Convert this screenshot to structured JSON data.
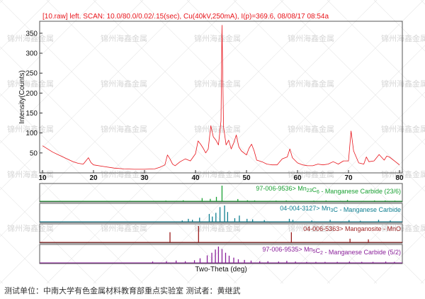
{
  "chart_data": {
    "type": "line",
    "title": "[10.raw] left. SCAN: 10.0/80.0/0.02/.15(sec), Cu(40kV,250mA), I(p)=369.6, 08/08/17 08:54a",
    "xlabel": "Two-Theta (deg)",
    "ylabel": "Intensity(Counts)",
    "xlim": [
      10,
      80
    ],
    "ylim": [
      0,
      380
    ],
    "x_ticks": [
      "10",
      "20",
      "30",
      "40",
      "50",
      "60",
      "70",
      "80"
    ],
    "y_ticks": [
      "50",
      "100",
      "150",
      "200",
      "250",
      "300",
      "350"
    ],
    "grid": false,
    "series": [
      {
        "color": "#e8141b",
        "x": [
          10,
          11,
          12,
          13,
          14,
          15,
          16,
          17,
          18,
          18.5,
          19,
          19.5,
          20,
          22,
          24,
          26,
          28,
          30,
          32,
          33,
          34,
          34.5,
          35,
          35.5,
          36,
          37,
          38,
          39,
          40,
          40.5,
          41,
          41.5,
          42,
          42.5,
          43,
          43.5,
          44,
          44.5,
          45,
          45.2,
          45.5,
          46,
          46.5,
          47,
          47.5,
          48,
          48.5,
          49,
          50,
          50.5,
          51,
          51.5,
          52,
          53,
          54,
          55,
          56,
          57,
          58,
          58.5,
          59,
          60,
          61,
          62,
          63,
          64,
          65,
          66,
          67,
          68,
          69,
          70,
          70.5,
          71,
          72,
          73,
          73.5,
          74,
          75,
          75.5,
          76,
          77,
          77.5,
          78,
          79,
          80
        ],
        "y": [
          68,
          60,
          52,
          46,
          40,
          34,
          28,
          24,
          22,
          30,
          38,
          26,
          20,
          16,
          12,
          10,
          9,
          9,
          10,
          14,
          20,
          45,
          35,
          22,
          18,
          28,
          35,
          30,
          48,
          80,
          72,
          62,
          50,
          60,
          118,
          90,
          82,
          70,
          130,
          370,
          115,
          70,
          82,
          60,
          75,
          95,
          65,
          55,
          45,
          62,
          72,
          55,
          32,
          28,
          22,
          20,
          20,
          35,
          40,
          60,
          38,
          25,
          20,
          18,
          18,
          22,
          20,
          22,
          28,
          22,
          30,
          30,
          105,
          55,
          25,
          22,
          40,
          28,
          30,
          38,
          46,
          32,
          42,
          40,
          30,
          20
        ]
      }
    ],
    "reference_patterns": [
      {
        "label": "97-006-9536> Mn23C6 - Manganese Carbide (23/6)",
        "code": "97-006-9536>",
        "formula_main": "Mn",
        "sub1": "23",
        "formula_c": "C",
        "sub2": "6",
        "name": "- Manganese Carbide (23/6)",
        "color": "#1aa133",
        "peaks": [
          {
            "x": 34.2,
            "h": 0.04
          },
          {
            "x": 37.6,
            "h": 0.06
          },
          {
            "x": 41.3,
            "h": 0.2
          },
          {
            "x": 42.9,
            "h": 0.15
          },
          {
            "x": 44.1,
            "h": 0.28
          },
          {
            "x": 45.2,
            "h": 1.0
          },
          {
            "x": 48.3,
            "h": 0.14
          },
          {
            "x": 50.2,
            "h": 0.06
          },
          {
            "x": 51.6,
            "h": 0.05
          },
          {
            "x": 55.8,
            "h": 0.04
          },
          {
            "x": 57.8,
            "h": 0.05
          },
          {
            "x": 63.2,
            "h": 0.04
          },
          {
            "x": 65.6,
            "h": 0.05
          },
          {
            "x": 69.8,
            "h": 0.08
          },
          {
            "x": 75.1,
            "h": 0.05
          },
          {
            "x": 77.2,
            "h": 0.05
          },
          {
            "x": 79.1,
            "h": 0.04
          }
        ]
      },
      {
        "label": "04-004-3127> Mn3C - Manganese Carbide",
        "code": "04-004-3127>",
        "formula_main": "Mn",
        "sub1": "3",
        "formula_c": "C",
        "sub2": "",
        "name": "- Manganese Carbide",
        "color": "#0f7f91",
        "peaks": [
          {
            "x": 37.4,
            "h": 0.08
          },
          {
            "x": 38.6,
            "h": 0.18
          },
          {
            "x": 39.4,
            "h": 0.12
          },
          {
            "x": 40.8,
            "h": 0.25
          },
          {
            "x": 42.7,
            "h": 0.48
          },
          {
            "x": 43.3,
            "h": 0.32
          },
          {
            "x": 44.0,
            "h": 0.55
          },
          {
            "x": 44.8,
            "h": 0.9
          },
          {
            "x": 45.7,
            "h": 1.0
          },
          {
            "x": 46.3,
            "h": 0.6
          },
          {
            "x": 47.7,
            "h": 0.22
          },
          {
            "x": 48.6,
            "h": 0.38
          },
          {
            "x": 50.1,
            "h": 0.18
          },
          {
            "x": 51.2,
            "h": 0.15
          },
          {
            "x": 53.5,
            "h": 0.1
          },
          {
            "x": 58.4,
            "h": 0.18
          },
          {
            "x": 59.1,
            "h": 0.12
          },
          {
            "x": 62.8,
            "h": 0.08
          },
          {
            "x": 66.4,
            "h": 0.12
          },
          {
            "x": 70.1,
            "h": 0.1
          },
          {
            "x": 72.3,
            "h": 0.06
          },
          {
            "x": 75.9,
            "h": 0.12
          },
          {
            "x": 78.2,
            "h": 0.08
          }
        ]
      },
      {
        "label": "04-006-5363> Manganosite - MnO",
        "code": "04-006-5363>",
        "formula_main": "Manganosite - MnO",
        "sub1": "",
        "formula_c": "",
        "sub2": "",
        "name": "",
        "color": "#9b1d1d",
        "peaks": [
          {
            "x": 35.0,
            "h": 0.62
          },
          {
            "x": 40.6,
            "h": 1.0
          },
          {
            "x": 58.8,
            "h": 0.62
          },
          {
            "x": 70.3,
            "h": 0.22
          },
          {
            "x": 73.9,
            "h": 0.18
          }
        ]
      },
      {
        "label": "97-006-9535> Mn5C2 - Manganese Carbide (5/2)",
        "code": "97-006-9535>",
        "formula_main": "Mn",
        "sub1": "5",
        "formula_c": "C",
        "sub2": "2",
        "name": "- Manganese Carbide (5/2)",
        "color": "#8a1f9a",
        "peaks": [
          {
            "x": 31.6,
            "h": 0.08
          },
          {
            "x": 34.3,
            "h": 0.1
          },
          {
            "x": 36.2,
            "h": 0.14
          },
          {
            "x": 38.0,
            "h": 0.1
          },
          {
            "x": 39.8,
            "h": 0.16
          },
          {
            "x": 40.9,
            "h": 0.28
          },
          {
            "x": 42.3,
            "h": 0.46
          },
          {
            "x": 43.2,
            "h": 0.62
          },
          {
            "x": 43.9,
            "h": 0.82
          },
          {
            "x": 44.5,
            "h": 1.0
          },
          {
            "x": 45.2,
            "h": 0.85
          },
          {
            "x": 45.9,
            "h": 0.62
          },
          {
            "x": 46.6,
            "h": 0.44
          },
          {
            "x": 47.5,
            "h": 0.32
          },
          {
            "x": 48.4,
            "h": 0.22
          },
          {
            "x": 49.6,
            "h": 0.18
          },
          {
            "x": 50.9,
            "h": 0.14
          },
          {
            "x": 52.6,
            "h": 0.1
          },
          {
            "x": 54.2,
            "h": 0.1
          },
          {
            "x": 56.3,
            "h": 0.08
          },
          {
            "x": 57.9,
            "h": 0.12
          },
          {
            "x": 59.6,
            "h": 0.08
          },
          {
            "x": 61.8,
            "h": 0.06
          },
          {
            "x": 63.6,
            "h": 0.06
          },
          {
            "x": 65.4,
            "h": 0.06
          },
          {
            "x": 67.8,
            "h": 0.06
          },
          {
            "x": 70.2,
            "h": 0.08
          },
          {
            "x": 72.6,
            "h": 0.06
          },
          {
            "x": 74.8,
            "h": 0.06
          },
          {
            "x": 77.3,
            "h": 0.08
          },
          {
            "x": 79.0,
            "h": 0.06
          }
        ]
      }
    ]
  },
  "caption": "测试单位：中南大学有色金属材料教育部重点实验室 测试者：黄继武",
  "watermark_text": "锦州海鑫金属"
}
